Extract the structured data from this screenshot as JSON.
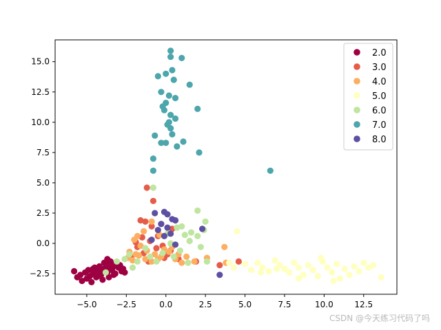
{
  "chart_data": {
    "type": "scatter",
    "title": "",
    "xlabel": "",
    "ylabel": "",
    "xlim": [
      -7.0,
      14.6
    ],
    "ylim": [
      -4.2,
      16.8
    ],
    "x_ticks": [
      -5.0,
      -2.5,
      0.0,
      2.5,
      5.0,
      7.5,
      10.0,
      12.5
    ],
    "x_tick_labels": [
      "−5.0",
      "−2.5",
      "0.0",
      "2.5",
      "5.0",
      "7.5",
      "10.0",
      "12.5"
    ],
    "y_ticks": [
      -2.5,
      0.0,
      2.5,
      5.0,
      7.5,
      10.0,
      12.5,
      15.0
    ],
    "y_tick_labels": [
      "−2.5",
      "0.0",
      "2.5",
      "5.0",
      "7.5",
      "10.0",
      "12.5",
      "15.0"
    ],
    "grid": false,
    "legend_position": "top-right",
    "series": [
      {
        "name": "2.0",
        "color": "#9e0142",
        "points": [
          [
            -5.8,
            -2.3
          ],
          [
            -5.6,
            -2.8
          ],
          [
            -5.4,
            -2.6
          ],
          [
            -5.3,
            -3.1
          ],
          [
            -5.1,
            -2.4
          ],
          [
            -5.0,
            -2.9
          ],
          [
            -4.9,
            -2.2
          ],
          [
            -4.8,
            -2.7
          ],
          [
            -4.7,
            -3.2
          ],
          [
            -4.6,
            -2.5
          ],
          [
            -4.5,
            -2.0
          ],
          [
            -4.4,
            -2.8
          ],
          [
            -4.3,
            -2.3
          ],
          [
            -4.2,
            -1.9
          ],
          [
            -4.1,
            -2.6
          ],
          [
            -4.0,
            -3.0
          ],
          [
            -3.9,
            -2.1
          ],
          [
            -3.8,
            -1.7
          ],
          [
            -3.7,
            -2.4
          ],
          [
            -3.6,
            -2.8
          ],
          [
            -3.5,
            -1.5
          ],
          [
            -3.4,
            -2.2
          ],
          [
            -3.3,
            -1.9
          ],
          [
            -3.2,
            -2.5
          ],
          [
            -3.1,
            -1.6
          ],
          [
            -3.0,
            -2.0
          ],
          [
            -2.9,
            -1.8
          ],
          [
            -2.8,
            -2.3
          ],
          [
            -2.7,
            -2.1
          ],
          [
            -2.6,
            -2.4
          ],
          [
            -4.6,
            -2.1
          ],
          [
            -4.3,
            -2.7
          ],
          [
            -3.9,
            -1.6
          ],
          [
            -3.6,
            -2.0
          ],
          [
            -3.3,
            -2.6
          ],
          [
            -4.0,
            -2.3
          ],
          [
            -3.7,
            -1.3
          ],
          [
            -3.4,
            -1.7
          ]
        ]
      },
      {
        "name": "3.0",
        "color": "#e55c4a",
        "points": [
          [
            -1.2,
            4.6
          ],
          [
            -0.8,
            3.5
          ],
          [
            -1.6,
            1.9
          ],
          [
            -1.3,
            1.8
          ],
          [
            -0.9,
            1.4
          ],
          [
            -0.3,
            1.6
          ],
          [
            0.4,
            1.2
          ],
          [
            -1.5,
            0.5
          ],
          [
            -1.9,
            0.1
          ],
          [
            -1.0,
            0.2
          ],
          [
            -0.6,
            -0.4
          ],
          [
            -1.4,
            -0.8
          ],
          [
            -0.2,
            -0.2
          ],
          [
            0.3,
            -0.6
          ],
          [
            -2.2,
            -1.1
          ],
          [
            -1.8,
            -0.3
          ],
          [
            0.8,
            -1.3
          ],
          [
            1.9,
            -1.5
          ],
          [
            3.4,
            -1.8
          ],
          [
            4.6,
            -1.5
          ],
          [
            -0.5,
            0.6
          ],
          [
            -0.1,
            -1.2
          ],
          [
            -1.1,
            -1.5
          ],
          [
            0.1,
            -0.9
          ]
        ]
      },
      {
        "name": "4.0",
        "color": "#fdae61",
        "points": [
          [
            -0.9,
            1.8
          ],
          [
            -1.4,
            1.0
          ],
          [
            -1.8,
            0.6
          ],
          [
            -2.0,
            0.3
          ],
          [
            -1.6,
            -0.2
          ],
          [
            -1.2,
            -0.6
          ],
          [
            -0.7,
            -0.9
          ],
          [
            -0.3,
            -1.1
          ],
          [
            0.2,
            -0.7
          ],
          [
            0.6,
            -1.3
          ],
          [
            1.0,
            -1.6
          ],
          [
            -2.4,
            -1.2
          ],
          [
            -2.1,
            -1.4
          ],
          [
            -1.7,
            -1.0
          ],
          [
            -1.3,
            -1.3
          ],
          [
            -0.9,
            -1.5
          ],
          [
            -0.5,
            -1.3
          ],
          [
            -0.1,
            -0.5
          ],
          [
            0.4,
            -0.3
          ],
          [
            0.8,
            -0.9
          ],
          [
            1.3,
            -1.1
          ],
          [
            1.8,
            -1.5
          ],
          [
            2.6,
            -1.2
          ],
          [
            3.7,
            -0.3
          ],
          [
            3.8,
            -1.6
          ],
          [
            -0.4,
            0.7
          ],
          [
            -1.9,
            -0.9
          ],
          [
            -2.3,
            -0.7
          ]
        ]
      },
      {
        "name": "5.0",
        "color": "#ffffbf",
        "points": [
          [
            4.5,
            1.0
          ],
          [
            4.0,
            -1.6
          ],
          [
            4.3,
            -2.0
          ],
          [
            5.0,
            -1.7
          ],
          [
            5.4,
            -2.2
          ],
          [
            5.8,
            -1.6
          ],
          [
            6.1,
            -2.0
          ],
          [
            6.5,
            -2.3
          ],
          [
            6.9,
            -1.4
          ],
          [
            7.2,
            -1.8
          ],
          [
            7.5,
            -2.1
          ],
          [
            7.8,
            -2.4
          ],
          [
            8.1,
            -1.6
          ],
          [
            8.4,
            -2.0
          ],
          [
            8.7,
            -2.6
          ],
          [
            9.0,
            -1.8
          ],
          [
            9.3,
            -2.2
          ],
          [
            9.6,
            -2.7
          ],
          [
            9.9,
            -1.5
          ],
          [
            10.2,
            -2.0
          ],
          [
            10.5,
            -2.4
          ],
          [
            10.8,
            -1.7
          ],
          [
            11.0,
            -2.9
          ],
          [
            11.3,
            -2.1
          ],
          [
            11.6,
            -2.6
          ],
          [
            11.9,
            -1.9
          ],
          [
            12.2,
            -2.3
          ],
          [
            12.5,
            -1.6
          ],
          [
            12.8,
            -2.0
          ],
          [
            13.1,
            -1.8
          ],
          [
            13.6,
            -2.8
          ],
          [
            10.6,
            -3.1
          ],
          [
            8.4,
            -2.9
          ],
          [
            6.0,
            -2.4
          ],
          [
            7.0,
            -2.1
          ],
          [
            9.8,
            -1.2
          ]
        ]
      },
      {
        "name": "6.0",
        "color": "#bfe5a0",
        "points": [
          [
            -0.8,
            4.6
          ],
          [
            2.0,
            2.7
          ],
          [
            2.5,
            1.8
          ],
          [
            2.4,
            1.1
          ],
          [
            1.0,
            1.4
          ],
          [
            1.6,
            0.9
          ],
          [
            0.7,
            1.3
          ],
          [
            2.0,
            0.6
          ],
          [
            2.2,
            -0.3
          ],
          [
            1.5,
            0.2
          ],
          [
            0.9,
            -0.6
          ],
          [
            0.3,
            0.0
          ],
          [
            -0.2,
            -0.8
          ],
          [
            -1.0,
            -1.1
          ],
          [
            -1.8,
            -1.5
          ],
          [
            -2.3,
            -0.9
          ],
          [
            -2.6,
            -1.3
          ],
          [
            -3.1,
            -1.5
          ],
          [
            -3.8,
            -2.4
          ],
          [
            -2.1,
            -2.0
          ],
          [
            -0.6,
            -1.5
          ],
          [
            0.5,
            -1.1
          ],
          [
            1.4,
            -1.6
          ],
          [
            2.6,
            -1.5
          ],
          [
            -1.3,
            -0.4
          ],
          [
            0.1,
            0.8
          ],
          [
            1.2,
            0.7
          ]
        ]
      },
      {
        "name": "7.0",
        "color": "#4ca6ac",
        "points": [
          [
            0.3,
            15.9
          ],
          [
            0.3,
            15.4
          ],
          [
            1.0,
            15.3
          ],
          [
            0.4,
            14.3
          ],
          [
            -0.5,
            13.8
          ],
          [
            0.0,
            14.0
          ],
          [
            0.5,
            13.5
          ],
          [
            1.5,
            13.1
          ],
          [
            -0.3,
            12.5
          ],
          [
            0.2,
            12.2
          ],
          [
            0.0,
            11.6
          ],
          [
            -0.1,
            11.0
          ],
          [
            0.3,
            10.6
          ],
          [
            0.6,
            10.3
          ],
          [
            2.0,
            11.1
          ],
          [
            0.1,
            9.8
          ],
          [
            0.3,
            9.5
          ],
          [
            0.4,
            9.0
          ],
          [
            -0.7,
            8.9
          ],
          [
            -0.3,
            8.3
          ],
          [
            0.0,
            8.3
          ],
          [
            0.7,
            8.0
          ],
          [
            1.1,
            8.4
          ],
          [
            -0.8,
            7.0
          ],
          [
            2.1,
            7.5
          ],
          [
            -0.8,
            6.0
          ],
          [
            6.6,
            6.0
          ],
          [
            0.6,
            12.0
          ],
          [
            -0.2,
            11.3
          ],
          [
            0.2,
            10.0
          ]
        ]
      },
      {
        "name": "8.0",
        "color": "#5e4fa2",
        "points": [
          [
            -0.1,
            2.6
          ],
          [
            0.1,
            2.4
          ],
          [
            -0.7,
            2.5
          ],
          [
            0.4,
            2.0
          ],
          [
            0.6,
            1.9
          ],
          [
            -0.3,
            1.6
          ],
          [
            0.1,
            1.3
          ],
          [
            -0.5,
            1.1
          ],
          [
            0.3,
            0.8
          ],
          [
            -0.1,
            0.6
          ],
          [
            2.3,
            1.2
          ],
          [
            -0.9,
            0.3
          ],
          [
            0.6,
            -0.1
          ],
          [
            3.4,
            -2.6
          ]
        ]
      }
    ]
  },
  "watermark": "CSDN @今天练习代码了吗"
}
